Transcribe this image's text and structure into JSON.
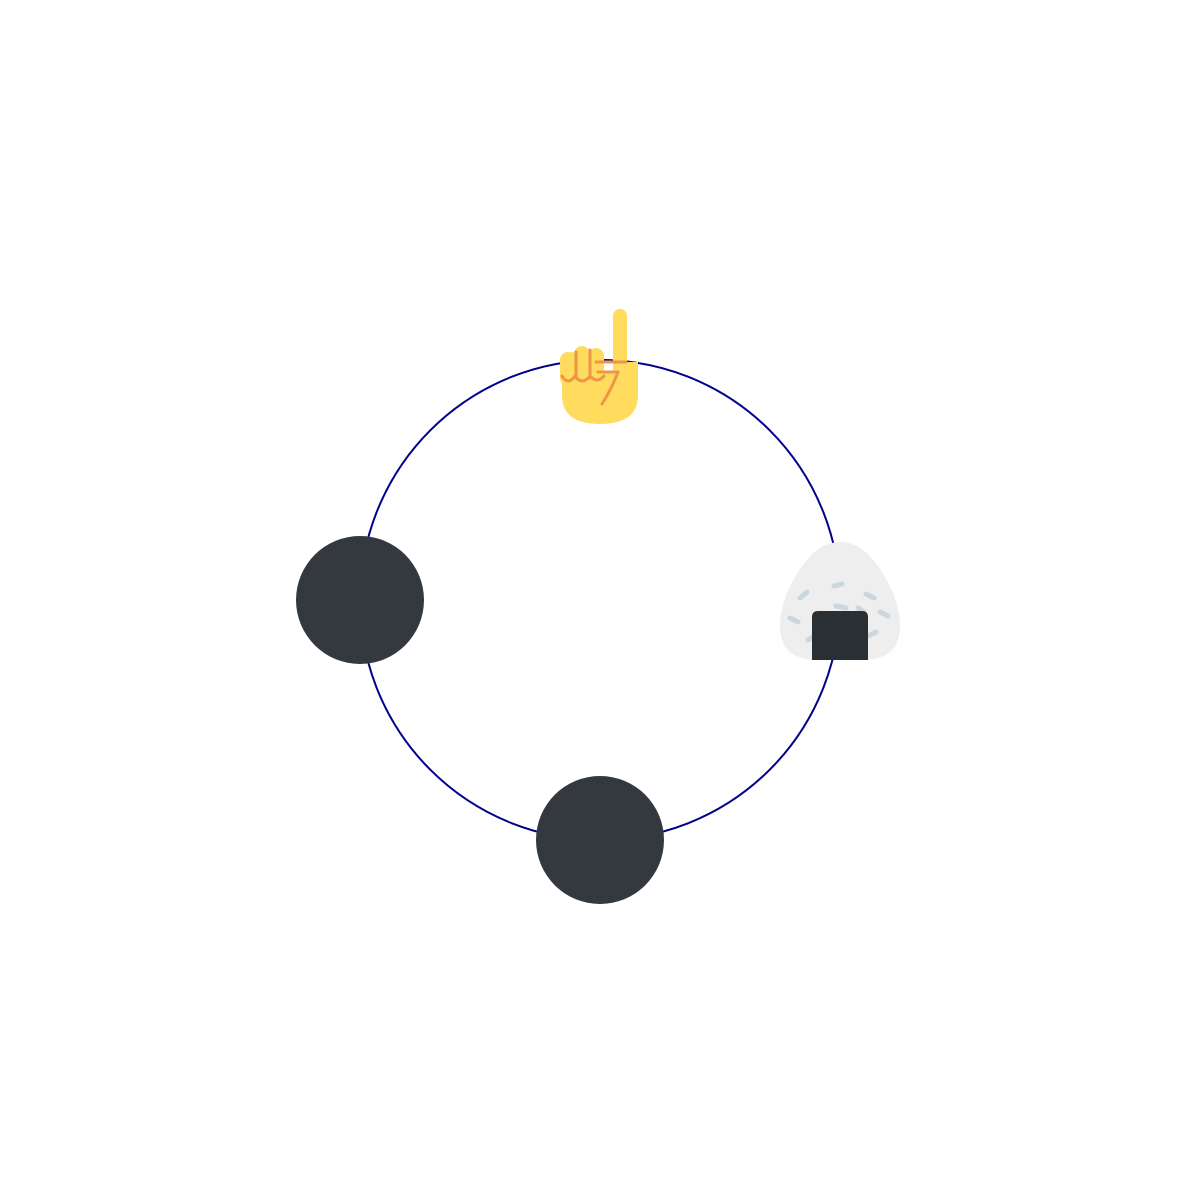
{
  "diagram": {
    "ring_color": "#00008b",
    "nodes": [
      {
        "position": "top",
        "icon": "index-pointing-up-icon"
      },
      {
        "position": "right",
        "icon": "rice-ball-icon"
      },
      {
        "position": "bottom",
        "icon": "dark-circle"
      },
      {
        "position": "left",
        "icon": "dark-circle"
      }
    ],
    "colors": {
      "dark_circle": "#343940",
      "hand_skin": "#ffdc5d",
      "hand_lines": "#ee9547",
      "rice": "#eeeeee",
      "rice_grains": "#cbd6dd",
      "nori": "#292f33"
    }
  }
}
